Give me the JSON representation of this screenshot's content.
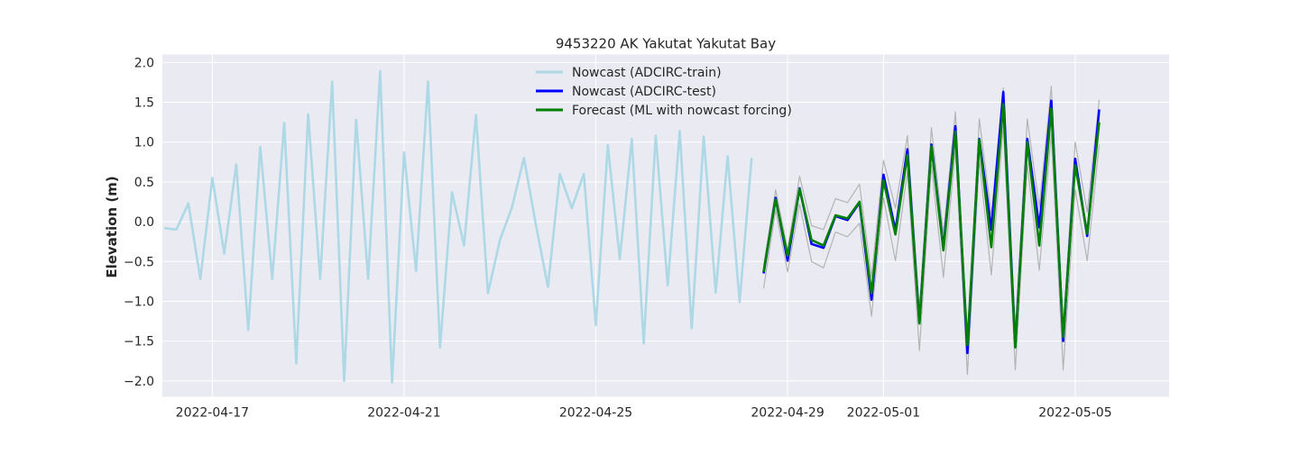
{
  "chart_data": {
    "type": "line",
    "title": "9453220 AK Yakutat Yakutat Bay",
    "xlabel": "",
    "ylabel": "Elevation (m)",
    "ylim": [
      -2.2,
      2.1
    ],
    "y_ticks": [
      "2.0",
      "1.5",
      "1.0",
      "0.5",
      "0.0",
      "−0.5",
      "−1.0",
      "−1.5",
      "−2.0"
    ],
    "y_tick_values": [
      2.0,
      1.5,
      1.0,
      0.5,
      0.0,
      -0.5,
      -1.0,
      -1.5,
      -2.0
    ],
    "x_range": [
      "2022-04-15 23:00",
      "2022-05-06 23:00"
    ],
    "x_ticks": [
      "2022-04-17",
      "2022-04-21",
      "2022-04-25",
      "2022-04-29",
      "2022-05-01",
      "2022-05-05"
    ],
    "grid": true,
    "legend_position": "top-center",
    "colors": {
      "background": "#eaeaf2",
      "grid": "#ffffff",
      "train": "#add8e6",
      "test": "#0000ff",
      "forecast": "#008000",
      "envelope": "#b4b4b4"
    },
    "series": [
      {
        "name": "Nowcast (ADCIRC-train)",
        "color": "#add8e6",
        "x": [
          "2022-04-16 00:00",
          "2022-04-16 06:00",
          "2022-04-16 12:00",
          "2022-04-16 18:00",
          "2022-04-17 00:00",
          "2022-04-17 06:00",
          "2022-04-17 12:00",
          "2022-04-17 18:00",
          "2022-04-18 00:00",
          "2022-04-18 06:00",
          "2022-04-18 12:00",
          "2022-04-18 18:00",
          "2022-04-19 00:00",
          "2022-04-19 06:00",
          "2022-04-19 12:00",
          "2022-04-19 18:00",
          "2022-04-20 00:00",
          "2022-04-20 06:00",
          "2022-04-20 12:00",
          "2022-04-20 18:00",
          "2022-04-21 00:00",
          "2022-04-21 06:00",
          "2022-04-21 12:00",
          "2022-04-21 18:00",
          "2022-04-22 00:00",
          "2022-04-22 06:00",
          "2022-04-22 12:00",
          "2022-04-22 18:00",
          "2022-04-23 00:00",
          "2022-04-23 06:00",
          "2022-04-23 12:00",
          "2022-04-23 18:00",
          "2022-04-24 00:00",
          "2022-04-24 06:00",
          "2022-04-24 12:00",
          "2022-04-24 18:00",
          "2022-04-25 00:00",
          "2022-04-25 06:00",
          "2022-04-25 12:00",
          "2022-04-25 18:00",
          "2022-04-26 00:00",
          "2022-04-26 06:00",
          "2022-04-26 12:00",
          "2022-04-26 18:00",
          "2022-04-27 00:00",
          "2022-04-27 06:00",
          "2022-04-27 12:00",
          "2022-04-27 18:00",
          "2022-04-28 00:00",
          "2022-04-28 06:00"
        ],
        "values": [
          -0.08,
          -0.1,
          0.23,
          -0.72,
          0.55,
          -0.4,
          0.72,
          -1.36,
          0.94,
          -0.72,
          1.24,
          -1.78,
          1.35,
          -0.72,
          1.76,
          -2.0,
          1.28,
          -0.72,
          1.89,
          -2.02,
          0.87,
          -0.62,
          1.76,
          -1.58,
          0.37,
          -0.3,
          1.34,
          -0.9,
          -0.23,
          0.18,
          0.8,
          -0.04,
          -0.82,
          0.6,
          0.17,
          0.6,
          -1.3,
          0.96,
          -0.47,
          1.04,
          -1.53,
          1.08,
          -0.8,
          1.14,
          -1.34,
          1.07,
          -0.89,
          0.82,
          -1.01,
          0.8
        ]
      },
      {
        "name": "Nowcast (ADCIRC-test)",
        "color": "#0000ff",
        "x": [
          "2022-04-28 12:00",
          "2022-04-28 18:00",
          "2022-04-29 00:00",
          "2022-04-29 06:00",
          "2022-04-29 12:00",
          "2022-04-29 18:00",
          "2022-04-30 00:00",
          "2022-04-30 06:00",
          "2022-04-30 12:00",
          "2022-04-30 18:00",
          "2022-05-01 00:00",
          "2022-05-01 06:00",
          "2022-05-01 12:00",
          "2022-05-01 18:00",
          "2022-05-02 00:00",
          "2022-05-02 06:00",
          "2022-05-02 12:00",
          "2022-05-02 18:00",
          "2022-05-03 00:00",
          "2022-05-03 06:00",
          "2022-05-03 12:00",
          "2022-05-03 18:00",
          "2022-05-04 00:00",
          "2022-05-04 06:00",
          "2022-05-04 12:00",
          "2022-05-04 18:00",
          "2022-05-05 00:00",
          "2022-05-05 06:00",
          "2022-05-05 12:00"
        ],
        "values": [
          -0.65,
          0.3,
          -0.49,
          0.42,
          -0.28,
          -0.33,
          0.07,
          0.02,
          0.24,
          -0.98,
          0.59,
          -0.11,
          0.91,
          -1.27,
          0.97,
          -0.33,
          1.2,
          -1.65,
          1.04,
          -0.1,
          1.63,
          -1.57,
          1.04,
          -0.07,
          1.52,
          -1.5,
          0.79,
          -0.18,
          1.41
        ]
      },
      {
        "name": "Forecast (ML with nowcast forcing)",
        "color": "#008000",
        "x": [
          "2022-04-28 12:00",
          "2022-04-28 18:00",
          "2022-04-29 00:00",
          "2022-04-29 06:00",
          "2022-04-29 12:00",
          "2022-04-29 18:00",
          "2022-04-30 00:00",
          "2022-04-30 06:00",
          "2022-04-30 12:00",
          "2022-04-30 18:00",
          "2022-05-01 00:00",
          "2022-05-01 06:00",
          "2022-05-01 12:00",
          "2022-05-01 18:00",
          "2022-05-02 00:00",
          "2022-05-02 06:00",
          "2022-05-02 12:00",
          "2022-05-02 18:00",
          "2022-05-03 00:00",
          "2022-05-03 06:00",
          "2022-05-03 12:00",
          "2022-05-03 18:00",
          "2022-05-04 00:00",
          "2022-05-04 06:00",
          "2022-05-04 12:00",
          "2022-05-04 18:00",
          "2022-05-05 00:00",
          "2022-05-05 06:00",
          "2022-05-05 12:00"
        ],
        "values": [
          -0.63,
          0.28,
          -0.43,
          0.41,
          -0.23,
          -0.3,
          0.08,
          0.04,
          0.25,
          -0.9,
          0.52,
          -0.16,
          0.84,
          -1.28,
          0.95,
          -0.36,
          1.13,
          -1.55,
          1.03,
          -0.32,
          1.48,
          -1.58,
          1.0,
          -0.3,
          1.42,
          -1.45,
          0.71,
          -0.15,
          1.25
        ]
      },
      {
        "color": "#b4b4b4",
        "x": [
          "2022-04-28 12:00",
          "2022-04-28 18:00",
          "2022-04-29 00:00",
          "2022-04-29 06:00",
          "2022-04-29 12:00",
          "2022-04-29 18:00",
          "2022-04-30 00:00",
          "2022-04-30 06:00",
          "2022-04-30 12:00",
          "2022-04-30 18:00",
          "2022-05-01 00:00",
          "2022-05-01 06:00",
          "2022-05-01 12:00",
          "2022-05-01 18:00",
          "2022-05-02 00:00",
          "2022-05-02 06:00",
          "2022-05-02 12:00",
          "2022-05-02 18:00",
          "2022-05-03 00:00",
          "2022-05-03 06:00",
          "2022-05-03 12:00",
          "2022-05-03 18:00",
          "2022-05-04 00:00",
          "2022-05-04 06:00",
          "2022-05-04 12:00",
          "2022-05-04 18:00",
          "2022-05-05 00:00",
          "2022-05-05 06:00",
          "2022-05-05 12:00"
        ],
        "values": [
          -0.55,
          0.4,
          -0.35,
          0.57,
          -0.05,
          -0.1,
          0.29,
          0.24,
          0.47,
          -0.7,
          0.77,
          0.17,
          1.08,
          -1.1,
          1.18,
          -0.15,
          1.38,
          -1.45,
          1.29,
          0.08,
          1.68,
          -1.35,
          1.29,
          0.18,
          1.7,
          -1.3,
          1.0,
          0.12,
          1.53
        ]
      },
      {
        "color": "#b4b4b4",
        "x": [
          "2022-04-28 12:00",
          "2022-04-28 18:00",
          "2022-04-29 00:00",
          "2022-04-29 06:00",
          "2022-04-29 12:00",
          "2022-04-29 18:00",
          "2022-04-30 00:00",
          "2022-04-30 06:00",
          "2022-04-30 12:00",
          "2022-04-30 18:00",
          "2022-05-01 00:00",
          "2022-05-01 06:00",
          "2022-05-01 12:00",
          "2022-05-01 18:00",
          "2022-05-02 00:00",
          "2022-05-02 06:00",
          "2022-05-02 12:00",
          "2022-05-02 18:00",
          "2022-05-03 00:00",
          "2022-05-03 06:00",
          "2022-05-03 12:00",
          "2022-05-03 18:00",
          "2022-05-04 00:00",
          "2022-05-04 06:00",
          "2022-05-04 12:00",
          "2022-05-04 18:00",
          "2022-05-05 00:00",
          "2022-05-05 06:00",
          "2022-05-05 12:00"
        ],
        "values": [
          -0.84,
          0.15,
          -0.63,
          0.22,
          -0.5,
          -0.58,
          -0.13,
          -0.19,
          -0.02,
          -1.19,
          0.3,
          -0.49,
          0.63,
          -1.62,
          0.72,
          -0.7,
          0.9,
          -1.92,
          0.77,
          -0.67,
          1.2,
          -1.86,
          0.72,
          -0.61,
          1.1,
          -1.86,
          0.4,
          -0.49,
          0.97
        ]
      }
    ]
  }
}
